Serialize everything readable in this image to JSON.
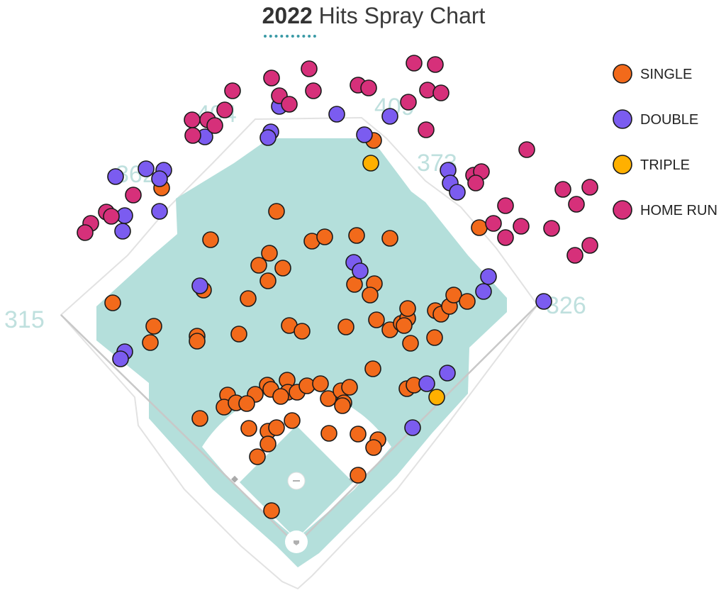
{
  "title": {
    "year": "2022",
    "text": "Hits Spray Chart"
  },
  "distances": {
    "left_line": "315",
    "left_center": "362",
    "left_center_deep": "404",
    "right_center_deep": "409",
    "right_center": "373",
    "right_line": "326"
  },
  "colors": {
    "turf": "#b4dfdb",
    "infield": "#ffffff",
    "single": "#f26a1b",
    "double": "#7b5cf0",
    "triple": "#ffb000",
    "home_run": "#d6307a"
  },
  "chart_data": {
    "type": "scatter",
    "title": "2022 Hits Spray Chart",
    "legend_position": "top-right",
    "series": [
      {
        "name": "SINGLE",
        "key": "single",
        "points": [
          [
            390,
            298
          ],
          [
            297,
            338
          ],
          [
            440,
            340
          ],
          [
            458,
            334
          ],
          [
            503,
            332
          ],
          [
            550,
            336
          ],
          [
            380,
            357
          ],
          [
            365,
            374
          ],
          [
            399,
            378
          ],
          [
            378,
            396
          ],
          [
            350,
            421
          ],
          [
            500,
            401
          ],
          [
            528,
            400
          ],
          [
            522,
            416
          ],
          [
            159,
            427
          ],
          [
            217,
            460
          ],
          [
            212,
            483
          ],
          [
            278,
            474
          ],
          [
            278,
            481
          ],
          [
            337,
            471
          ],
          [
            408,
            459
          ],
          [
            426,
            467
          ],
          [
            488,
            461
          ],
          [
            531,
            451
          ],
          [
            550,
            465
          ],
          [
            566,
            456
          ],
          [
            575,
            449
          ],
          [
            575,
            435
          ],
          [
            570,
            459
          ],
          [
            614,
            438
          ],
          [
            622,
            443
          ],
          [
            634,
            432
          ],
          [
            640,
            416
          ],
          [
            659,
            425
          ],
          [
            613,
            476
          ],
          [
            579,
            484
          ],
          [
            526,
            520
          ],
          [
            574,
            548
          ],
          [
            584,
            543
          ],
          [
            405,
            536
          ],
          [
            377,
            543
          ],
          [
            382,
            549
          ],
          [
            406,
            553
          ],
          [
            419,
            553
          ],
          [
            433,
            544
          ],
          [
            452,
            541
          ],
          [
            463,
            562
          ],
          [
            481,
            551
          ],
          [
            493,
            546
          ],
          [
            485,
            568
          ],
          [
            483,
            572
          ],
          [
            396,
            559
          ],
          [
            360,
            556
          ],
          [
            321,
            557
          ],
          [
            316,
            574
          ],
          [
            333,
            568
          ],
          [
            348,
            569
          ],
          [
            282,
            590
          ],
          [
            412,
            593
          ],
          [
            351,
            604
          ],
          [
            378,
            608
          ],
          [
            390,
            603
          ],
          [
            378,
            626
          ],
          [
            464,
            611
          ],
          [
            505,
            612
          ],
          [
            533,
            620
          ],
          [
            527,
            631
          ],
          [
            363,
            644
          ],
          [
            505,
            670
          ],
          [
            383,
            720
          ],
          [
            527,
            198
          ],
          [
            676,
            321
          ],
          [
            287,
            409
          ],
          [
            228,
            265
          ]
        ]
      },
      {
        "name": "DOUBLE",
        "key": "double",
        "points": [
          [
            394,
            150
          ],
          [
            475,
            161
          ],
          [
            550,
            164
          ],
          [
            514,
            190
          ],
          [
            382,
            186
          ],
          [
            378,
            194
          ],
          [
            289,
            193
          ],
          [
            163,
            249
          ],
          [
            206,
            238
          ],
          [
            231,
            240
          ],
          [
            225,
            252
          ],
          [
            225,
            298
          ],
          [
            176,
            304
          ],
          [
            173,
            326
          ],
          [
            632,
            240
          ],
          [
            635,
            258
          ],
          [
            645,
            271
          ],
          [
            499,
            370
          ],
          [
            508,
            382
          ],
          [
            282,
            403
          ],
          [
            689,
            390
          ],
          [
            682,
            411
          ],
          [
            767,
            425
          ],
          [
            176,
            496
          ],
          [
            170,
            506
          ],
          [
            631,
            526
          ],
          [
            602,
            541
          ],
          [
            582,
            603
          ]
        ]
      },
      {
        "name": "TRIPLE",
        "key": "triple",
        "points": [
          [
            523,
            230
          ],
          [
            616,
            560
          ]
        ]
      },
      {
        "name": "HOME RUN",
        "key": "home_run",
        "points": [
          [
            383,
            110
          ],
          [
            436,
            97
          ],
          [
            584,
            89
          ],
          [
            614,
            91
          ],
          [
            505,
            120
          ],
          [
            520,
            124
          ],
          [
            442,
            128
          ],
          [
            394,
            135
          ],
          [
            408,
            147
          ],
          [
            603,
            127
          ],
          [
            622,
            131
          ],
          [
            576,
            144
          ],
          [
            328,
            128
          ],
          [
            317,
            155
          ],
          [
            271,
            169
          ],
          [
            293,
            169
          ],
          [
            303,
            177
          ],
          [
            272,
            191
          ],
          [
            601,
            183
          ],
          [
            743,
            211
          ],
          [
            668,
            247
          ],
          [
            679,
            242
          ],
          [
            671,
            258
          ],
          [
            188,
            275
          ],
          [
            150,
            299
          ],
          [
            157,
            305
          ],
          [
            128,
            315
          ],
          [
            120,
            328
          ],
          [
            713,
            290
          ],
          [
            696,
            315
          ],
          [
            735,
            319
          ],
          [
            713,
            335
          ],
          [
            778,
            322
          ],
          [
            794,
            267
          ],
          [
            832,
            264
          ],
          [
            813,
            288
          ],
          [
            832,
            346
          ],
          [
            811,
            360
          ]
        ]
      }
    ]
  },
  "legend": [
    {
      "label": "SINGLE",
      "key": "single"
    },
    {
      "label": "DOUBLE",
      "key": "double"
    },
    {
      "label": "TRIPLE",
      "key": "triple"
    },
    {
      "label": "HOME RUN",
      "key": "home_run"
    }
  ]
}
